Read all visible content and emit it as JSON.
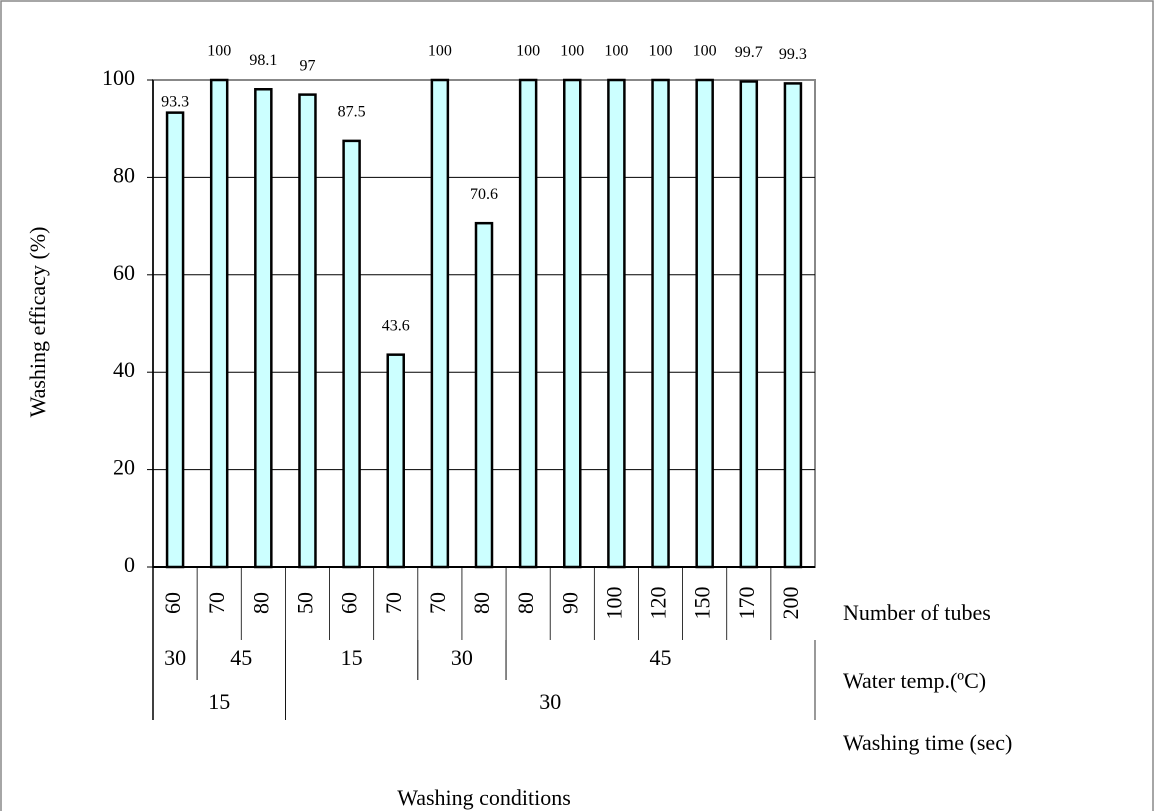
{
  "chart_data": {
    "type": "bar",
    "y_label": "Washing efficacy (%)",
    "x_label": "Washing conditions",
    "categories_label": "Number of tubes",
    "categories": [
      "60",
      "70",
      "80",
      "50",
      "60",
      "70",
      "70",
      "80",
      "80",
      "90",
      "100",
      "120",
      "150",
      "170",
      "200"
    ],
    "values": [
      93.3,
      100,
      98.1,
      97,
      87.5,
      43.6,
      100,
      70.6,
      100,
      100,
      100,
      100,
      100,
      99.7,
      99.3
    ],
    "color": "#ccffff",
    "ylim": [
      0,
      100
    ],
    "yticks": [
      0,
      20,
      40,
      60,
      80,
      100
    ],
    "grid": true,
    "group_rows": [
      {
        "name": "Water temp.(ºC)",
        "groups": [
          {
            "label": "30",
            "span": 1
          },
          {
            "label": "45",
            "span": 2
          },
          {
            "label": "15",
            "span": 3
          },
          {
            "label": "30",
            "span": 2
          },
          {
            "label": "45",
            "span": 7
          }
        ]
      },
      {
        "name": "Washing time (sec)",
        "groups": [
          {
            "label": "15",
            "span": 3
          },
          {
            "label": "30",
            "span": 12
          }
        ]
      }
    ]
  }
}
